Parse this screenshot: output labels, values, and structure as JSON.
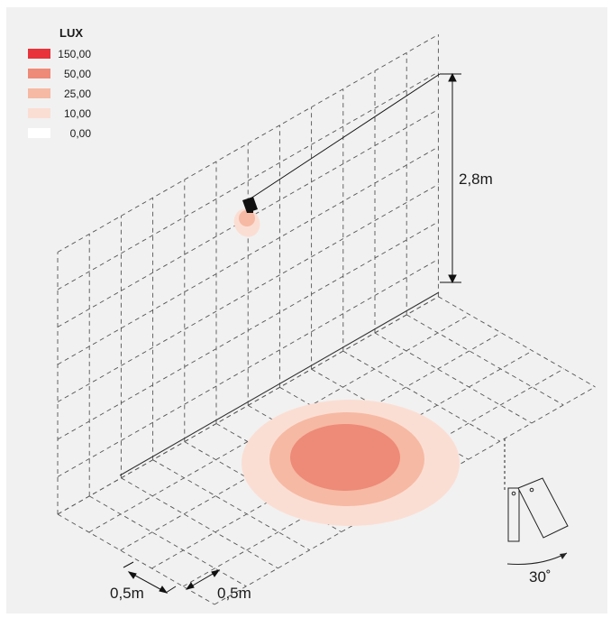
{
  "legend": {
    "title": "LUX",
    "items": [
      {
        "label": "150,00",
        "color": "#e8333a"
      },
      {
        "label": "50,00",
        "color": "#ee8a78"
      },
      {
        "label": "25,00",
        "color": "#f6b9a3"
      },
      {
        "label": "10,00",
        "color": "#fbded3"
      },
      {
        "label": "0,00",
        "color": "#ffffff"
      }
    ]
  },
  "dimensions": {
    "height": "2,8m",
    "grid_x": "0,5m",
    "grid_y": "0,5m",
    "tilt_angle": "30˚"
  },
  "colors": {
    "grid": "#555555",
    "outline": "#222222",
    "zone_10": "#fbded3",
    "zone_25": "#f6b9a3",
    "zone_50": "#ee8a78",
    "zone_150": "#e8333a"
  }
}
